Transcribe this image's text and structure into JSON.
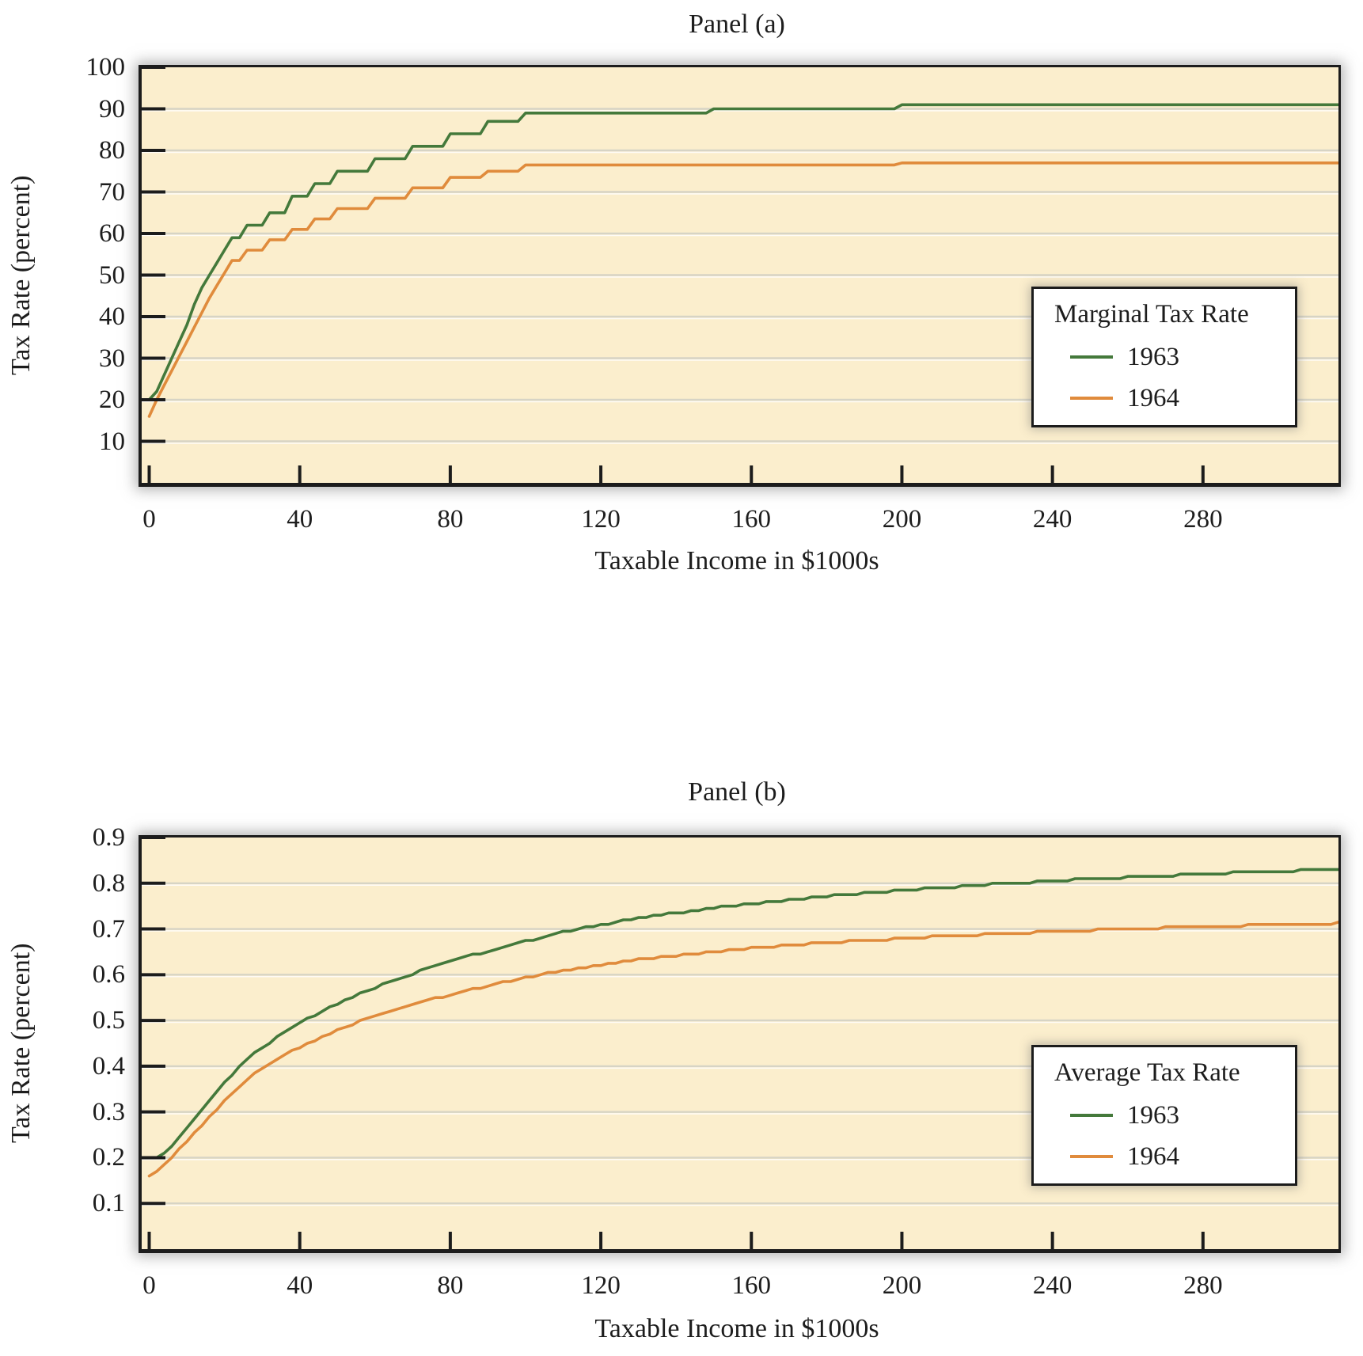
{
  "colors": {
    "plot_background": "#fbeecd",
    "gridline": "#d7d4c5",
    "axis": "#1c1c1c",
    "series_1963": "#44793b",
    "series_1964": "#e08b3c"
  },
  "chart_data": [
    {
      "id": "panel-a",
      "type": "line",
      "title": "Panel (a)",
      "xlabel": "Taxable Income in $1000s",
      "ylabel": "Tax Rate (percent)",
      "quantity": "marginal",
      "x_ticks": [
        0,
        40,
        80,
        120,
        160,
        200,
        240,
        280
      ],
      "y_ticks": [
        10,
        20,
        30,
        40,
        50,
        60,
        70,
        80,
        90,
        100
      ],
      "xlim": [
        -2,
        316
      ],
      "ylim": [
        0,
        100
      ],
      "x_drawn_max": 316,
      "sample_step_thousands": 2,
      "grid": "horizontal",
      "legend": {
        "title": "Marginal Tax Rate",
        "position": "right-middle",
        "entries": [
          {
            "label": "1963",
            "color": "#44793b"
          },
          {
            "label": "1964",
            "color": "#e08b3c"
          }
        ]
      },
      "series": [
        {
          "name": "1963",
          "color": "#44793b",
          "start_rate_percent": 20,
          "top_rate_percent": 91,
          "tax_brackets": [
            [
              0,
              20
            ],
            [
              2,
              22
            ],
            [
              4,
              26
            ],
            [
              6,
              30
            ],
            [
              8,
              34
            ],
            [
              10,
              38
            ],
            [
              12,
              43
            ],
            [
              14,
              47
            ],
            [
              16,
              50
            ],
            [
              18,
              53
            ],
            [
              20,
              56
            ],
            [
              22,
              59
            ],
            [
              26,
              62
            ],
            [
              32,
              65
            ],
            [
              38,
              69
            ],
            [
              44,
              72
            ],
            [
              50,
              75
            ],
            [
              60,
              78
            ],
            [
              70,
              81
            ],
            [
              80,
              84
            ],
            [
              90,
              87
            ],
            [
              100,
              89
            ],
            [
              150,
              90
            ],
            [
              200,
              91
            ]
          ]
        },
        {
          "name": "1964",
          "color": "#e08b3c",
          "start_rate_percent": 16,
          "top_rate_percent": 77,
          "tax_brackets": [
            [
              0,
              16
            ],
            [
              0.5,
              16.5
            ],
            [
              1,
              17.5
            ],
            [
              1.5,
              18
            ],
            [
              2,
              20
            ],
            [
              4,
              23.5
            ],
            [
              6,
              27
            ],
            [
              8,
              30.5
            ],
            [
              10,
              34
            ],
            [
              12,
              37.5
            ],
            [
              14,
              41
            ],
            [
              16,
              44.5
            ],
            [
              18,
              47.5
            ],
            [
              20,
              50.5
            ],
            [
              22,
              53.5
            ],
            [
              26,
              56
            ],
            [
              32,
              58.5
            ],
            [
              38,
              61
            ],
            [
              44,
              63.5
            ],
            [
              50,
              66
            ],
            [
              60,
              68.5
            ],
            [
              70,
              71
            ],
            [
              80,
              73.5
            ],
            [
              90,
              75
            ],
            [
              100,
              76.5
            ],
            [
              200,
              77
            ]
          ]
        }
      ]
    },
    {
      "id": "panel-b",
      "type": "line",
      "title": "Panel (b)",
      "xlabel": "Taxable Income in $1000s",
      "ylabel": "Tax Rate (percent)",
      "quantity": "average",
      "round_to": 0.005,
      "x_ticks": [
        0,
        40,
        80,
        120,
        160,
        200,
        240,
        280
      ],
      "y_ticks": [
        0.1,
        0.2,
        0.3,
        0.4,
        0.5,
        0.6,
        0.7,
        0.8,
        0.9
      ],
      "xlim": [
        -2,
        316
      ],
      "ylim": [
        0,
        0.9
      ],
      "x_drawn_max": 316,
      "sample_step_thousands": 2,
      "grid": "horizontal",
      "legend": {
        "title": "Average Tax Rate",
        "position": "right-middle",
        "entries": [
          {
            "label": "1963",
            "color": "#44793b"
          },
          {
            "label": "1964",
            "color": "#e08b3c"
          }
        ]
      },
      "series": [
        {
          "name": "1963",
          "color": "#44793b",
          "start_value": 0.2,
          "end_value_at_316": 0.83,
          "tax_brackets": [
            [
              0,
              20
            ],
            [
              2,
              22
            ],
            [
              4,
              26
            ],
            [
              6,
              30
            ],
            [
              8,
              34
            ],
            [
              10,
              38
            ],
            [
              12,
              43
            ],
            [
              14,
              47
            ],
            [
              16,
              50
            ],
            [
              18,
              53
            ],
            [
              20,
              56
            ],
            [
              22,
              59
            ],
            [
              26,
              62
            ],
            [
              32,
              65
            ],
            [
              38,
              69
            ],
            [
              44,
              72
            ],
            [
              50,
              75
            ],
            [
              60,
              78
            ],
            [
              70,
              81
            ],
            [
              80,
              84
            ],
            [
              90,
              87
            ],
            [
              100,
              89
            ],
            [
              150,
              90
            ],
            [
              200,
              91
            ]
          ]
        },
        {
          "name": "1964",
          "color": "#e08b3c",
          "start_value": 0.16,
          "end_value_at_316": 0.71,
          "tax_brackets": [
            [
              0,
              16
            ],
            [
              0.5,
              16.5
            ],
            [
              1,
              17.5
            ],
            [
              1.5,
              18
            ],
            [
              2,
              20
            ],
            [
              4,
              23.5
            ],
            [
              6,
              27
            ],
            [
              8,
              30.5
            ],
            [
              10,
              34
            ],
            [
              12,
              37.5
            ],
            [
              14,
              41
            ],
            [
              16,
              44.5
            ],
            [
              18,
              47.5
            ],
            [
              20,
              50.5
            ],
            [
              22,
              53.5
            ],
            [
              26,
              56
            ],
            [
              32,
              58.5
            ],
            [
              38,
              61
            ],
            [
              44,
              63.5
            ],
            [
              50,
              66
            ],
            [
              60,
              68.5
            ],
            [
              70,
              71
            ],
            [
              80,
              73.5
            ],
            [
              90,
              75
            ],
            [
              100,
              76.5
            ],
            [
              200,
              77
            ]
          ]
        }
      ]
    }
  ]
}
